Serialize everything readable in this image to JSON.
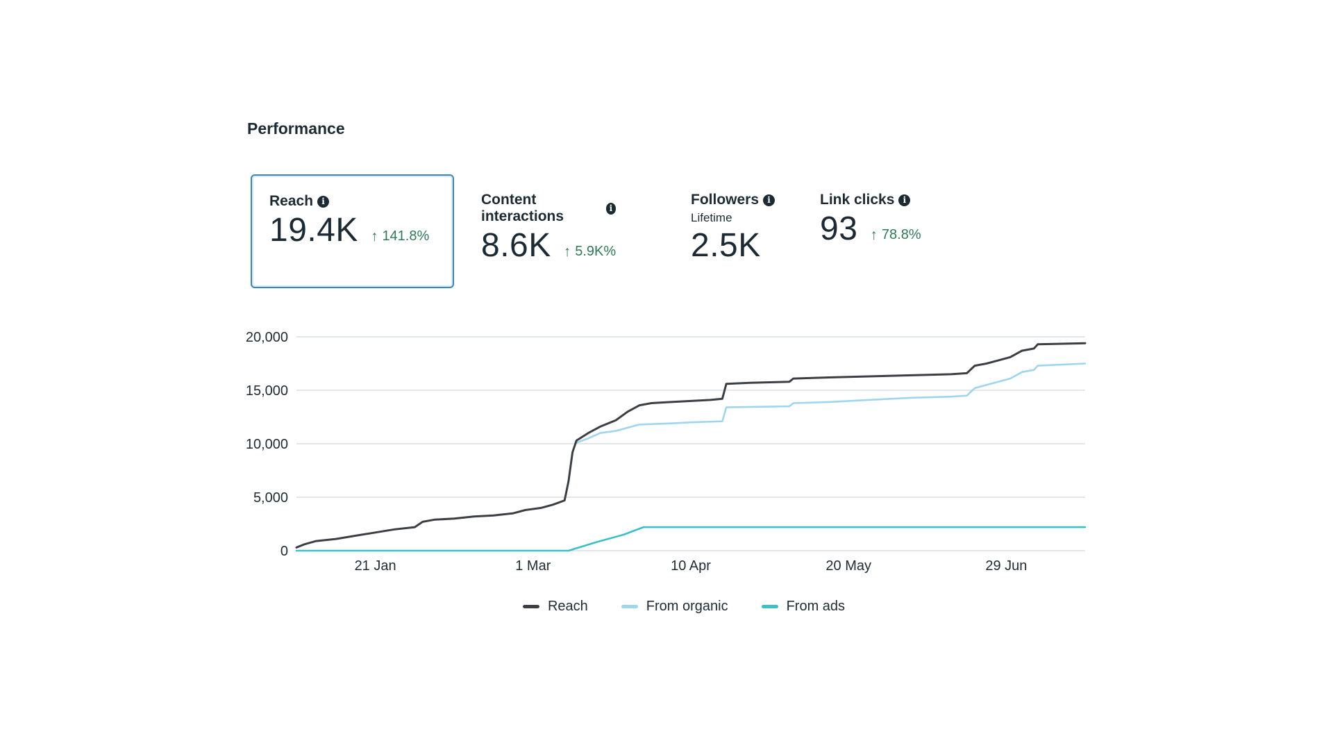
{
  "section_title": "Performance",
  "kpis": [
    {
      "label": "Reach",
      "value": "19.4K",
      "change": "141.8%",
      "sub": "",
      "selected": true
    },
    {
      "label": "Content interactions",
      "value": "8.6K",
      "change": "5.9K%",
      "sub": "",
      "selected": false
    },
    {
      "label": "Followers",
      "value": "2.5K",
      "change": "",
      "sub": "Lifetime",
      "selected": false
    },
    {
      "label": "Link clicks",
      "value": "93",
      "change": "78.8%",
      "sub": "",
      "selected": false
    }
  ],
  "colors": {
    "reach": "#3b3f44",
    "organic": "#9dd6ee",
    "ads": "#3cc0c8",
    "positive": "#2d7a55",
    "grid": "#dcdfe3",
    "selected_border": "#3a86b8"
  },
  "chart_data": {
    "type": "line",
    "x_tick_labels": [
      "21 Jan",
      "1 Mar",
      "10 Apr",
      "20 May",
      "29 Jun"
    ],
    "x_tick_values": [
      "2024-01-21",
      "2024-03-01",
      "2024-04-10",
      "2024-05-20",
      "2024-06-29"
    ],
    "xlim": [
      "2024-01-01",
      "2024-07-19"
    ],
    "y_tick_labels": [
      "20,000",
      "15,000",
      "10,000",
      "5,000",
      "0"
    ],
    "y_tick_values": [
      20000,
      15000,
      10000,
      5000,
      0
    ],
    "ylim": [
      0,
      20000
    ],
    "grid": true,
    "legend_position": "bottom",
    "series": [
      {
        "name": "Reach",
        "color_key": "reach",
        "points": [
          [
            "2024-01-01",
            300
          ],
          [
            "2024-01-03",
            600
          ],
          [
            "2024-01-06",
            900
          ],
          [
            "2024-01-11",
            1100
          ],
          [
            "2024-01-16",
            1400
          ],
          [
            "2024-01-21",
            1700
          ],
          [
            "2024-01-26",
            2000
          ],
          [
            "2024-01-31",
            2200
          ],
          [
            "2024-02-02",
            2700
          ],
          [
            "2024-02-05",
            2900
          ],
          [
            "2024-02-10",
            3000
          ],
          [
            "2024-02-15",
            3200
          ],
          [
            "2024-02-20",
            3300
          ],
          [
            "2024-02-25",
            3500
          ],
          [
            "2024-02-28",
            3800
          ],
          [
            "2024-03-03",
            4000
          ],
          [
            "2024-03-06",
            4300
          ],
          [
            "2024-03-09",
            4700
          ],
          [
            "2024-03-10",
            6500
          ],
          [
            "2024-03-11",
            9200
          ],
          [
            "2024-03-12",
            10300
          ],
          [
            "2024-03-15",
            11000
          ],
          [
            "2024-03-18",
            11600
          ],
          [
            "2024-03-22",
            12200
          ],
          [
            "2024-03-25",
            13000
          ],
          [
            "2024-03-28",
            13600
          ],
          [
            "2024-03-31",
            13800
          ],
          [
            "2024-04-05",
            13900
          ],
          [
            "2024-04-10",
            14000
          ],
          [
            "2024-04-15",
            14100
          ],
          [
            "2024-04-18",
            14200
          ],
          [
            "2024-04-19",
            15600
          ],
          [
            "2024-04-25",
            15700
          ],
          [
            "2024-05-05",
            15800
          ],
          [
            "2024-05-06",
            16100
          ],
          [
            "2024-05-15",
            16200
          ],
          [
            "2024-05-25",
            16300
          ],
          [
            "2024-06-05",
            16400
          ],
          [
            "2024-06-15",
            16500
          ],
          [
            "2024-06-19",
            16600
          ],
          [
            "2024-06-21",
            17300
          ],
          [
            "2024-06-24",
            17500
          ],
          [
            "2024-06-27",
            17800
          ],
          [
            "2024-06-30",
            18100
          ],
          [
            "2024-07-03",
            18700
          ],
          [
            "2024-07-06",
            18900
          ],
          [
            "2024-07-07",
            19300
          ],
          [
            "2024-07-19",
            19400
          ]
        ]
      },
      {
        "name": "From organic",
        "color_key": "organic",
        "points": [
          [
            "2024-03-12",
            10100
          ],
          [
            "2024-03-15",
            10500
          ],
          [
            "2024-03-18",
            11000
          ],
          [
            "2024-03-22",
            11200
          ],
          [
            "2024-03-25",
            11500
          ],
          [
            "2024-03-28",
            11800
          ],
          [
            "2024-04-05",
            11900
          ],
          [
            "2024-04-10",
            12000
          ],
          [
            "2024-04-18",
            12100
          ],
          [
            "2024-04-19",
            13400
          ],
          [
            "2024-05-05",
            13500
          ],
          [
            "2024-05-06",
            13800
          ],
          [
            "2024-05-15",
            13900
          ],
          [
            "2024-05-25",
            14100
          ],
          [
            "2024-06-05",
            14300
          ],
          [
            "2024-06-15",
            14400
          ],
          [
            "2024-06-19",
            14500
          ],
          [
            "2024-06-21",
            15200
          ],
          [
            "2024-06-24",
            15500
          ],
          [
            "2024-06-27",
            15800
          ],
          [
            "2024-06-30",
            16100
          ],
          [
            "2024-07-03",
            16700
          ],
          [
            "2024-07-06",
            16900
          ],
          [
            "2024-07-07",
            17300
          ],
          [
            "2024-07-19",
            17500
          ]
        ]
      },
      {
        "name": "From ads",
        "color_key": "ads",
        "points": [
          [
            "2024-01-01",
            0
          ],
          [
            "2024-03-10",
            0
          ],
          [
            "2024-03-17",
            800
          ],
          [
            "2024-03-24",
            1500
          ],
          [
            "2024-03-29",
            2200
          ],
          [
            "2024-07-19",
            2200
          ]
        ]
      }
    ]
  }
}
